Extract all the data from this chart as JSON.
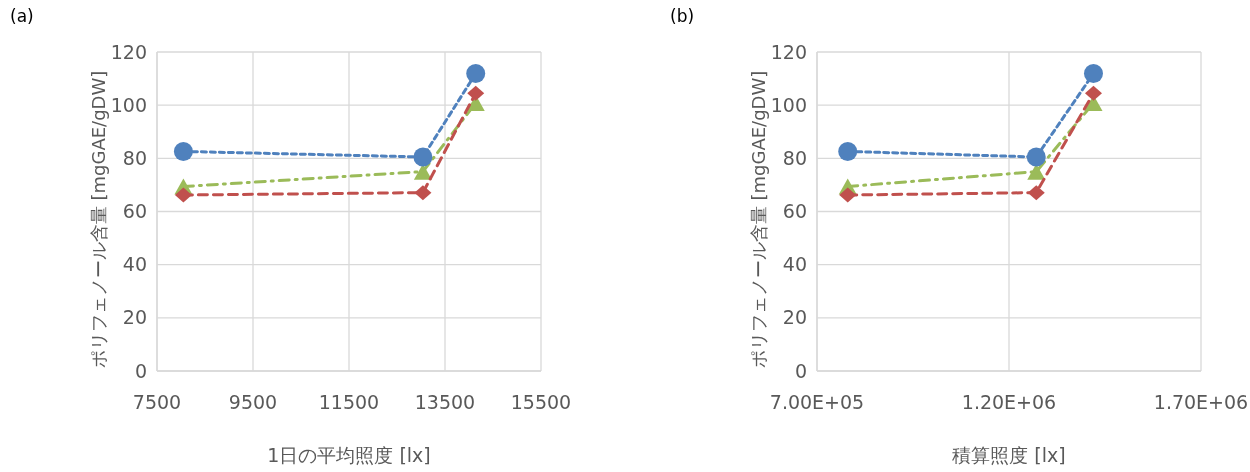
{
  "chart_data": [
    {
      "type": "line",
      "title": "(a)",
      "xlabel": "1日の平均照度 [lx]",
      "ylabel": "ポリフェノール含量 [mgGAE/gDW]",
      "xlim": [
        7500,
        15500
      ],
      "xticks": [
        7500,
        9500,
        11500,
        13500,
        15500
      ],
      "ylim": [
        0,
        120
      ],
      "yticks": [
        0,
        20,
        40,
        60,
        80,
        100,
        120
      ],
      "grid": true,
      "x": [
        8050,
        13040,
        14140
      ],
      "series": [
        {
          "color": "#4f81bd",
          "values": [
            82.6,
            80.5,
            111.9
          ],
          "marker": "circle",
          "line_style": "dotted"
        },
        {
          "color": "#c0504d",
          "values": [
            66.2,
            67.1,
            104.5
          ],
          "marker": "diamond",
          "line_style": "dashed"
        },
        {
          "color": "#9bbb59",
          "values": [
            69.4,
            75,
            100.8
          ],
          "marker": "triangle",
          "line_style": "dashdot"
        }
      ]
    },
    {
      "type": "line",
      "title": "(b)",
      "xlabel": "積算照度 [lx]",
      "ylabel": "ポリフェノール含量 [mgGAE/gDW]",
      "xlim": [
        700000,
        1700000
      ],
      "xticks": [
        {
          "value": 700000,
          "label": "7.00E+05"
        },
        {
          "value": 1200000,
          "label": "1.20E+06"
        },
        {
          "value": 1700000,
          "label": "1.70E+06"
        }
      ],
      "ylim": [
        0,
        120
      ],
      "yticks": [
        0,
        20,
        40,
        60,
        80,
        100,
        120
      ],
      "grid": true,
      "x": [
        780000,
        1271000,
        1420000
      ],
      "series": [
        {
          "color": "#4f81bd",
          "values": [
            82.6,
            80.5,
            111.9
          ],
          "marker": "circle",
          "line_style": "dotted"
        },
        {
          "color": "#c0504d",
          "values": [
            66.2,
            67.1,
            104.5
          ],
          "marker": "diamond",
          "line_style": "dashed"
        },
        {
          "color": "#9bbb59",
          "values": [
            69.4,
            75,
            100.8
          ],
          "marker": "triangle",
          "line_style": "dashdot"
        }
      ]
    }
  ]
}
